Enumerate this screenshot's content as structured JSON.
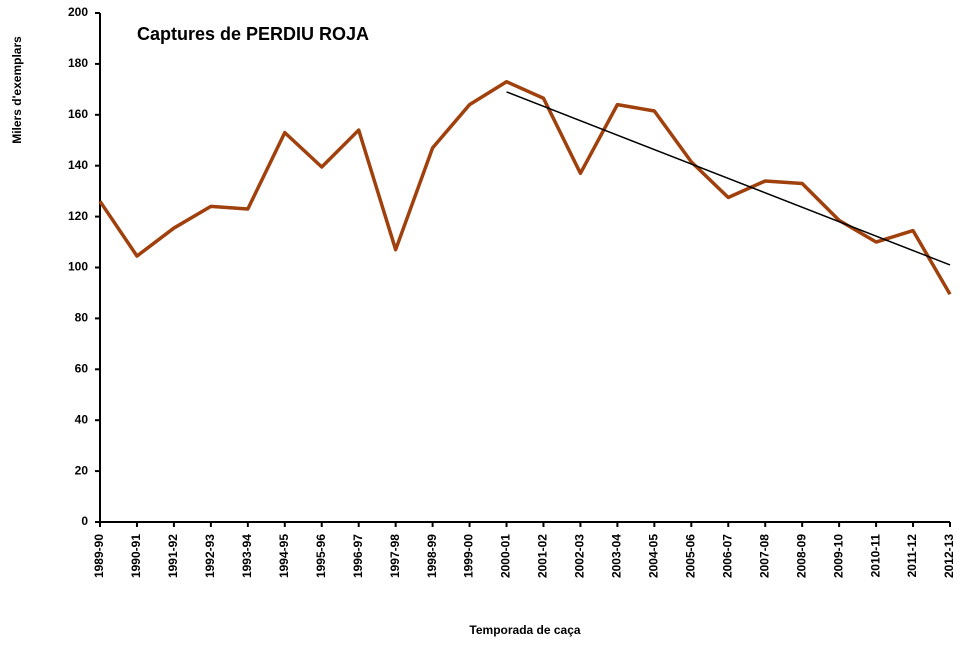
{
  "chart_data": {
    "type": "line",
    "title": "Captures de PERDIU ROJA",
    "xlabel": "Temporada de caça",
    "ylabel": "Milers d'exemplars",
    "categories": [
      "1989-90",
      "1990-91",
      "1991-92",
      "1992-93",
      "1993-94",
      "1994-95",
      "1995-96",
      "1996-97",
      "1997-98",
      "1998-99",
      "1999-00",
      "2000-01",
      "2001-02",
      "2002-03",
      "2003-04",
      "2004-05",
      "2005-06",
      "2006-07",
      "2007-08",
      "2008-09",
      "2009-10",
      "2010-11",
      "2011-12",
      "2012-13"
    ],
    "series": [
      {
        "color": "#a0410d",
        "values": [
          126,
          104.5,
          115.5,
          124,
          123,
          153,
          139.5,
          154,
          107,
          147,
          164,
          173,
          166.5,
          137,
          164,
          161.5,
          141.5,
          127.5,
          134,
          133,
          118.5,
          110,
          114.5,
          89.5
        ]
      }
    ],
    "trend": {
      "color": "#000000",
      "values": [
        null,
        null,
        null,
        null,
        null,
        null,
        null,
        null,
        null,
        null,
        null,
        169,
        null,
        null,
        null,
        null,
        null,
        null,
        null,
        null,
        null,
        null,
        null,
        101
      ]
    },
    "ylim": [
      0,
      200
    ],
    "yticks": [
      0,
      20,
      40,
      60,
      80,
      100,
      120,
      140,
      160,
      180,
      200
    ],
    "grid": false
  }
}
